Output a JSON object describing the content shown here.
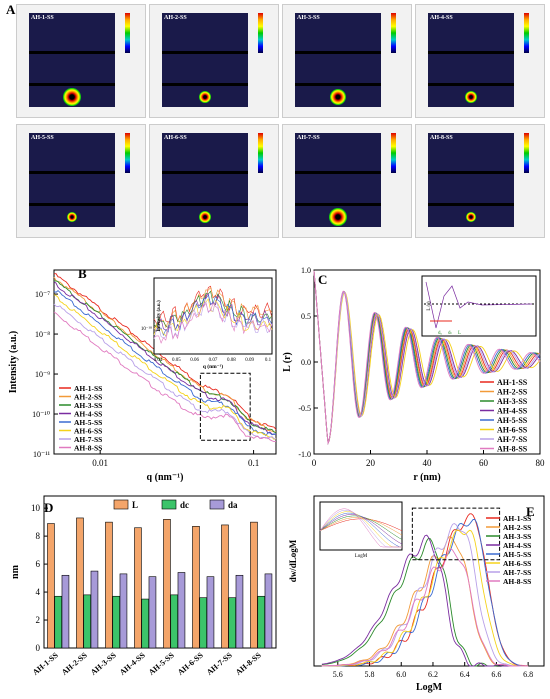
{
  "panels": {
    "A": "A",
    "B": "B",
    "C": "C",
    "D": "D",
    "E": "E"
  },
  "samples": [
    "AH-1-SS",
    "AH-2-SS",
    "AH-3-SS",
    "AH-4-SS",
    "AH-5-SS",
    "AH-6-SS",
    "AH-7-SS",
    "AH-8-SS"
  ],
  "colors": [
    "#e8281e",
    "#f29a38",
    "#2a8a2a",
    "#7a2ca0",
    "#3a6ad0",
    "#f5d21a",
    "#b8a0e8",
    "#e07ac0"
  ],
  "chart_data": [
    {
      "panel": "B",
      "type": "line",
      "xlabel": "q (nm⁻¹)",
      "ylabel": "Intensity (a.u.)",
      "xscale": "log",
      "yscale": "log",
      "xlim": [
        0.005,
        0.14
      ],
      "ylim": [
        1e-11,
        4e-07
      ],
      "xticks": [
        "0.01",
        "0.1"
      ],
      "yticks": [
        "10⁻¹¹",
        "10⁻¹⁰",
        "10⁻⁹",
        "10⁻⁸",
        "10⁻⁷"
      ],
      "start_intensity": [
        3.2e-07,
        2.6e-07,
        2.2e-07,
        1.9e-07,
        1.3e-07,
        9e-08,
        6e-08,
        3.5e-08
      ],
      "peak_q": 0.065,
      "inset": {
        "xlabel": "q (nm⁻¹)",
        "ylabel": "Intensity (a.u.)",
        "xticks": [
          "0.04",
          "0.05",
          "0.06",
          "0.07",
          "0.08",
          "0.09",
          "0.1"
        ],
        "ytick": "10⁻¹⁰"
      }
    },
    {
      "panel": "C",
      "type": "line",
      "xlabel": "r (nm)",
      "ylabel": "L (r)",
      "xlim": [
        0,
        80
      ],
      "ylim": [
        -1.0,
        1.0
      ],
      "xticks": [
        "0",
        "20",
        "40",
        "60",
        "80"
      ],
      "yticks": [
        "-1.0",
        "-0.5",
        "0.0",
        "0.5",
        "1.0"
      ],
      "periods": [
        19.2,
        19.0,
        18.8,
        19.6,
        18.6,
        20.0,
        19.4,
        18.4
      ],
      "inset": {
        "ylabel": "L (r)",
        "annotations": [
          "dₐ",
          "dₜ",
          "L"
        ]
      }
    },
    {
      "panel": "D",
      "type": "bar",
      "ylabel": "nm",
      "ylim": [
        0,
        10
      ],
      "yticks": [
        "0",
        "2",
        "4",
        "6",
        "8",
        "10"
      ],
      "legend": [
        "L",
        "dc",
        "da"
      ],
      "series_colors": [
        "#f4a56a",
        "#3cc46a",
        "#a79ad8"
      ],
      "categories": [
        "AH-1-SS",
        "AH-2-SS",
        "AH-3-SS",
        "AH-4-SS",
        "AH-5-SS",
        "AH-6-SS",
        "AH-7-SS",
        "AH-8-SS"
      ],
      "series": [
        {
          "name": "L",
          "values": [
            8.9,
            9.3,
            9.0,
            8.6,
            9.2,
            8.7,
            8.8,
            9.0
          ]
        },
        {
          "name": "dc",
          "values": [
            3.7,
            3.8,
            3.7,
            3.5,
            3.8,
            3.6,
            3.6,
            3.7
          ]
        },
        {
          "name": "da",
          "values": [
            5.2,
            5.5,
            5.3,
            5.1,
            5.4,
            5.1,
            5.2,
            5.3
          ]
        }
      ]
    },
    {
      "panel": "E",
      "type": "line",
      "xlabel": "LogM",
      "ylabel": "dw/dLogM",
      "xlim": [
        5.45,
        6.9
      ],
      "xticks": [
        "5.6",
        "5.8",
        "6.0",
        "6.2",
        "6.4",
        "6.6",
        "6.8"
      ],
      "peak_logM": [
        6.45,
        6.34,
        6.2,
        6.18,
        6.45,
        6.42,
        6.38,
        6.35
      ],
      "peak_height": [
        2.45,
        2.05,
        2.0,
        2.05,
        2.4,
        2.25,
        2.3,
        1.85
      ],
      "inset": {
        "xlabel": "LogM"
      }
    }
  ]
}
